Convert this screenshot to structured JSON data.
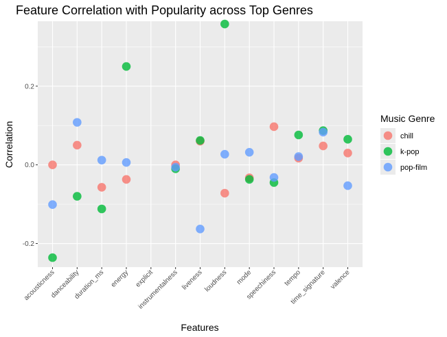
{
  "chart_data": {
    "type": "scatter",
    "title": "Feature Correlation with Popularity across Top Genres",
    "xlabel": "Features",
    "ylabel": "Correlation",
    "categories": [
      "acousticness",
      "danceability",
      "duration_ms",
      "energy",
      "explicit",
      "instrumentalness",
      "liveness",
      "loudness",
      "mode",
      "speechiness",
      "tempo",
      "time_signature",
      "valence"
    ],
    "y_ticks": [
      -0.2,
      0.0,
      0.2
    ],
    "y_tick_labels": [
      "-0.2",
      "0.0",
      "0.2"
    ],
    "ylim": [
      -0.26,
      0.365
    ],
    "grid": true,
    "legend": {
      "title": "Music Genre",
      "position": "right"
    },
    "series": [
      {
        "name": "chill",
        "color": "#F8766D",
        "values": [
          0.0,
          0.05,
          -0.057,
          -0.037,
          null,
          0.0,
          0.06,
          -0.072,
          -0.033,
          0.097,
          0.017,
          0.048,
          0.03
        ]
      },
      {
        "name": "k-pop",
        "color": "#00BA38",
        "values": [
          -0.236,
          -0.08,
          -0.112,
          0.25,
          null,
          -0.01,
          0.062,
          0.358,
          -0.037,
          -0.045,
          0.076,
          0.087,
          0.065
        ]
      },
      {
        "name": "pop-film",
        "color": "#619CFF",
        "values": [
          -0.101,
          0.108,
          0.012,
          0.006,
          null,
          -0.006,
          -0.163,
          0.027,
          0.032,
          -0.032,
          0.021,
          0.083,
          -0.053
        ]
      }
    ]
  }
}
